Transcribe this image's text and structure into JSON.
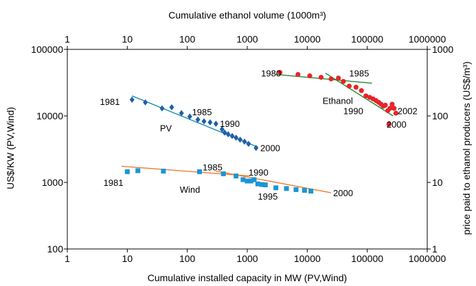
{
  "chart_data": {
    "type": "scatter",
    "title": "",
    "xlabel_bottom": "Cumulative installed capacity in MW (PV,Wind)",
    "xlabel_top": "Cumulative ethanol volume (1000m³)",
    "ylabel_left": "US$/KW (PV,Wind)",
    "ylabel_right": "price paid to ethanol producers (US$/m³)",
    "x_scale": "log",
    "y_scale": "log",
    "xlim_bottom": [
      1,
      1000000
    ],
    "xlim_top": [
      1,
      1000000
    ],
    "ylim_left": [
      100,
      100000
    ],
    "ylim_right": [
      1,
      1000
    ],
    "x_ticks": [
      "1",
      "10",
      "100",
      "1000",
      "10000",
      "100000",
      "1000000"
    ],
    "y_ticks_left": [
      "100",
      "1000",
      "10000",
      "100000"
    ],
    "y_ticks_right": [
      "1",
      "10",
      "100",
      "1000"
    ],
    "grid": false,
    "series": [
      {
        "name": "PV",
        "axis": "bottom-left",
        "marker": "diamond",
        "color": "#1f5fa8",
        "trend_color": "#1a8fb0",
        "trend": [
          [
            12,
            20000
          ],
          [
            1500,
            3400
          ]
        ],
        "points": [
          [
            12,
            17500
          ],
          [
            20,
            16000
          ],
          [
            38,
            13000
          ],
          [
            55,
            13500
          ],
          [
            80,
            11000
          ],
          [
            110,
            9800
          ],
          [
            150,
            8800
          ],
          [
            190,
            8300
          ],
          [
            240,
            8000
          ],
          [
            300,
            7600
          ],
          [
            380,
            6300
          ],
          [
            420,
            5600
          ],
          [
            480,
            5300
          ],
          [
            560,
            5000
          ],
          [
            650,
            4700
          ],
          [
            760,
            4400
          ],
          [
            900,
            4100
          ],
          [
            1050,
            3800
          ],
          [
            1400,
            3300
          ]
        ]
      },
      {
        "name": "Wind",
        "axis": "bottom-left",
        "marker": "square",
        "color": "#1a96d4",
        "trend_color": "#f07a30",
        "trend": [
          [
            8,
            1750
          ],
          [
            1100,
            1250
          ]
        ],
        "trend2": [
          [
            300,
            1480
          ],
          [
            25000,
            700
          ]
        ],
        "points": [
          [
            10,
            1450
          ],
          [
            15,
            1500
          ],
          [
            40,
            1480
          ],
          [
            160,
            1450
          ],
          [
            400,
            1350
          ],
          [
            650,
            1250
          ],
          [
            850,
            1100
          ],
          [
            1000,
            1050
          ],
          [
            1150,
            1050
          ],
          [
            1300,
            1100
          ],
          [
            1500,
            950
          ],
          [
            1750,
            930
          ],
          [
            2000,
            920
          ],
          [
            3000,
            830
          ],
          [
            4500,
            810
          ],
          [
            6500,
            780
          ],
          [
            9000,
            760
          ],
          [
            11500,
            740
          ]
        ]
      },
      {
        "name": "Ethanol",
        "axis": "top-right",
        "marker": "circle",
        "color": "#e8242a",
        "trend_color": "#1e8a2c",
        "trend": [
          [
            3000,
            420
          ],
          [
            120000,
            310
          ]
        ],
        "trend2": [
          [
            20000,
            440
          ],
          [
            270000,
            100
          ]
        ],
        "points": [
          [
            3500,
            450
          ],
          [
            7000,
            420
          ],
          [
            11000,
            400
          ],
          [
            17000,
            380
          ],
          [
            25000,
            360
          ],
          [
            33000,
            370
          ],
          [
            40000,
            330
          ],
          [
            50000,
            280
          ],
          [
            65000,
            270
          ],
          [
            80000,
            240
          ],
          [
            95000,
            200
          ],
          [
            110000,
            190
          ],
          [
            125000,
            180
          ],
          [
            140000,
            170
          ],
          [
            155000,
            160
          ],
          [
            170000,
            150
          ],
          [
            185000,
            140
          ],
          [
            200000,
            145
          ],
          [
            220000,
            120
          ],
          [
            240000,
            130
          ],
          [
            260000,
            150
          ],
          [
            280000,
            130
          ],
          [
            300000,
            110
          ],
          [
            230000,
            75
          ]
        ]
      }
    ],
    "annotations": [
      {
        "text": "1980",
        "x": 1700,
        "y": 440,
        "axis": "top-right"
      },
      {
        "text": "1985",
        "x": 50000,
        "y": 440,
        "axis": "top-right"
      },
      {
        "text": "Ethanol",
        "x": 18000,
        "y": 170,
        "axis": "top-right"
      },
      {
        "text": "1990",
        "x": 40000,
        "y": 120,
        "axis": "top-right"
      },
      {
        "text": "2002",
        "x": 320000,
        "y": 120,
        "axis": "top-right"
      },
      {
        "text": "2000",
        "x": 210000,
        "y": 75,
        "axis": "top-right"
      },
      {
        "text": "1981",
        "x": 3.5,
        "y": 16500,
        "axis": "bottom-left"
      },
      {
        "text": "1985",
        "x": 120,
        "y": 11500,
        "axis": "bottom-left"
      },
      {
        "text": "1990",
        "x": 350,
        "y": 7700,
        "axis": "bottom-left"
      },
      {
        "text": "PV",
        "x": 35,
        "y": 6600,
        "axis": "bottom-left"
      },
      {
        "text": "2000",
        "x": 1650,
        "y": 3300,
        "axis": "bottom-left"
      },
      {
        "text": "1985",
        "x": 180,
        "y": 1700,
        "axis": "bottom-left"
      },
      {
        "text": "1990",
        "x": 1050,
        "y": 1420,
        "axis": "bottom-left"
      },
      {
        "text": "1981",
        "x": 4,
        "y": 1000,
        "axis": "bottom-left"
      },
      {
        "text": "Wind",
        "x": 75,
        "y": 790,
        "axis": "bottom-left"
      },
      {
        "text": "1995",
        "x": 1500,
        "y": 620,
        "axis": "bottom-left"
      },
      {
        "text": "2000",
        "x": 27000,
        "y": 700,
        "axis": "bottom-left"
      }
    ]
  }
}
